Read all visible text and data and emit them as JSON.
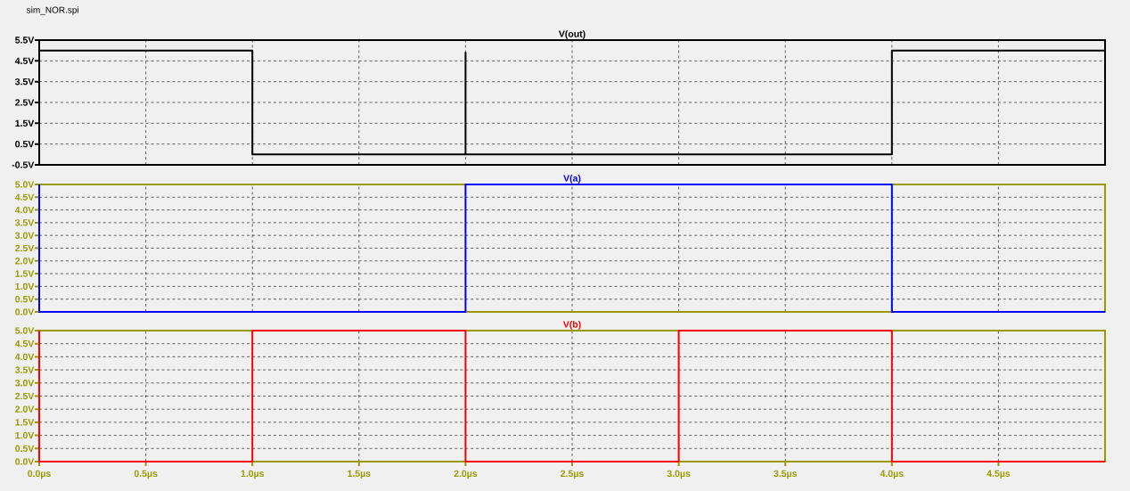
{
  "chart_data": [
    {
      "type": "line",
      "annotations": [
        "sim_NOR.spi"
      ],
      "grid": true,
      "tick_labels": "y",
      "xlim": [
        0,
        5
      ],
      "xticks": [
        {
          "value": 0,
          "label": null
        },
        {
          "value": 0.5,
          "label": null
        },
        {
          "value": 1,
          "label": null
        },
        {
          "value": 1.5,
          "label": null
        },
        {
          "value": 2,
          "label": null
        },
        {
          "value": 2.5,
          "label": null
        },
        {
          "value": 3,
          "label": null
        },
        {
          "value": 3.5,
          "label": null
        },
        {
          "value": 4,
          "label": null
        },
        {
          "value": 4.5,
          "label": null
        }
      ],
      "ylim": [
        -0.5,
        5.5
      ],
      "yticks": [
        {
          "value": -0.5,
          "label": "-0.5V"
        },
        {
          "value": 0.5,
          "label": "0.5V"
        },
        {
          "value": 1.5,
          "label": "1.5V"
        },
        {
          "value": 2.5,
          "label": "2.5V"
        },
        {
          "value": 3.5,
          "label": "3.5V"
        },
        {
          "value": 4.5,
          "label": "4.5V"
        },
        {
          "value": 5.5,
          "label": "5.5V"
        }
      ],
      "series": [
        {
          "name": "V(out)",
          "color": "#000000",
          "x": [
            0,
            1,
            1,
            2,
            2,
            2,
            4,
            4,
            5
          ],
          "values": [
            5,
            5,
            0,
            0,
            4.9,
            0,
            0,
            5,
            5
          ]
        }
      ]
    },
    {
      "type": "line",
      "grid": true,
      "tick_labels": "y",
      "xlim": [
        0,
        5
      ],
      "xticks": [
        {
          "value": 0,
          "label": null
        },
        {
          "value": 0.5,
          "label": null
        },
        {
          "value": 1,
          "label": null
        },
        {
          "value": 1.5,
          "label": null
        },
        {
          "value": 2,
          "label": null
        },
        {
          "value": 2.5,
          "label": null
        },
        {
          "value": 3,
          "label": null
        },
        {
          "value": 3.5,
          "label": null
        },
        {
          "value": 4,
          "label": null
        },
        {
          "value": 4.5,
          "label": null
        }
      ],
      "ylim": [
        0,
        5
      ],
      "yticks": [
        {
          "value": 0,
          "label": "0.0V"
        },
        {
          "value": 0.5,
          "label": "0.5V"
        },
        {
          "value": 1,
          "label": "1.0V"
        },
        {
          "value": 1.5,
          "label": "1.5V"
        },
        {
          "value": 2,
          "label": "2.0V"
        },
        {
          "value": 2.5,
          "label": "2.5V"
        },
        {
          "value": 3,
          "label": "3.0V"
        },
        {
          "value": 3.5,
          "label": "3.5V"
        },
        {
          "value": 4,
          "label": "4.0V"
        },
        {
          "value": 4.5,
          "label": "4.5V"
        },
        {
          "value": 5,
          "label": "5.0V"
        }
      ],
      "series": [
        {
          "name": "V(a)",
          "color": "#0000ff",
          "x": [
            0,
            0,
            2,
            2,
            4,
            4,
            5
          ],
          "values": [
            5,
            0,
            0,
            5,
            5,
            0,
            0
          ]
        }
      ]
    },
    {
      "type": "line",
      "grid": true,
      "xlim": [
        0,
        5
      ],
      "xticks": [
        {
          "value": 0,
          "label": "0.0µs"
        },
        {
          "value": 0.5,
          "label": "0.5µs"
        },
        {
          "value": 1,
          "label": "1.0µs"
        },
        {
          "value": 1.5,
          "label": "1.5µs"
        },
        {
          "value": 2,
          "label": "2.0µs"
        },
        {
          "value": 2.5,
          "label": "2.5µs"
        },
        {
          "value": 3,
          "label": "3.0µs"
        },
        {
          "value": 3.5,
          "label": "3.5µs"
        },
        {
          "value": 4,
          "label": "4.0µs"
        },
        {
          "value": 4.5,
          "label": "4.5µs"
        }
      ],
      "ylim": [
        0,
        5
      ],
      "yticks": [
        {
          "value": 0,
          "label": "0.0V"
        },
        {
          "value": 0.5,
          "label": "0.5V"
        },
        {
          "value": 1,
          "label": "1.0V"
        },
        {
          "value": 1.5,
          "label": "1.5V"
        },
        {
          "value": 2,
          "label": "2.0V"
        },
        {
          "value": 2.5,
          "label": "2.5V"
        },
        {
          "value": 3,
          "label": "3.0V"
        },
        {
          "value": 3.5,
          "label": "3.5V"
        },
        {
          "value": 4,
          "label": "4.0V"
        },
        {
          "value": 4.5,
          "label": "4.5V"
        },
        {
          "value": 5,
          "label": "5.0V"
        }
      ],
      "series": [
        {
          "name": "V(b)",
          "color": "#ff0000",
          "x": [
            0,
            0,
            1,
            1,
            2,
            2,
            3,
            3,
            4,
            4,
            5
          ],
          "values": [
            5,
            0,
            0,
            5,
            5,
            0,
            0,
            5,
            5,
            0,
            0
          ]
        }
      ]
    }
  ]
}
